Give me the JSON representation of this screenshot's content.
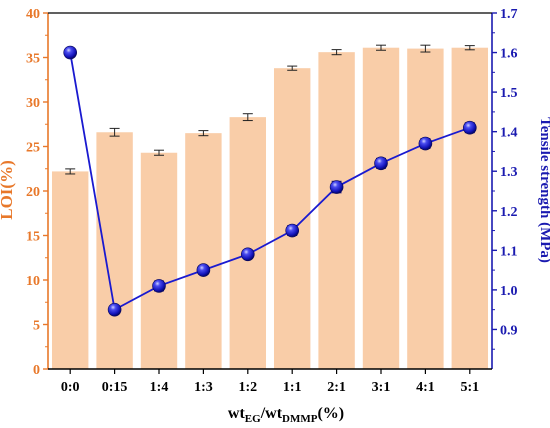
{
  "chart_data": {
    "type": "bar",
    "categories": [
      "0:0",
      "0:15",
      "1:4",
      "1:3",
      "1:2",
      "1:1",
      "2:1",
      "3:1",
      "4:1",
      "5:1"
    ],
    "series": [
      {
        "type": "bar",
        "axis": "left",
        "color": "#f9cda8",
        "values": [
          22.2,
          26.6,
          24.3,
          26.5,
          28.3,
          33.8,
          35.6,
          36.1,
          36.0,
          36.1
        ],
        "errors": [
          0.15,
          0.3,
          0.15,
          0.15,
          0.25,
          0.1,
          0.15,
          0.15,
          0.25,
          0.1
        ]
      },
      {
        "type": "line",
        "axis": "right",
        "color": "#1a1ad0",
        "marker": "sphere",
        "values": [
          1.6,
          0.95,
          1.01,
          1.05,
          1.09,
          1.15,
          1.26,
          1.32,
          1.37,
          1.41
        ],
        "errors": [
          0.008,
          0.008,
          0.01,
          0.008,
          0.008,
          0.01,
          0.012,
          0.01,
          0.01,
          0.01
        ]
      }
    ],
    "xlabel_base": "wt",
    "xlabel_sub1": "EG",
    "xlabel_sep": "/wt",
    "xlabel_sub2": "DMMP",
    "xlabel_suffix": "(%)",
    "ylabel_left": "LOI(%)",
    "ylabel_right": "Tensile strength (MPa)",
    "ylim_left": [
      0,
      40
    ],
    "yticks_left": [
      0,
      5,
      10,
      15,
      20,
      25,
      30,
      35,
      40
    ],
    "ylim_right": [
      0.8,
      1.7
    ],
    "yticks_right": [
      "0.9",
      "1.0",
      "1.1",
      "1.2",
      "1.3",
      "1.4",
      "1.5",
      "1.6",
      "1.7"
    ],
    "left_axis_color": "#e8782a",
    "right_axis_color": "#1a1ab0",
    "grid": false,
    "legend": "none"
  }
}
